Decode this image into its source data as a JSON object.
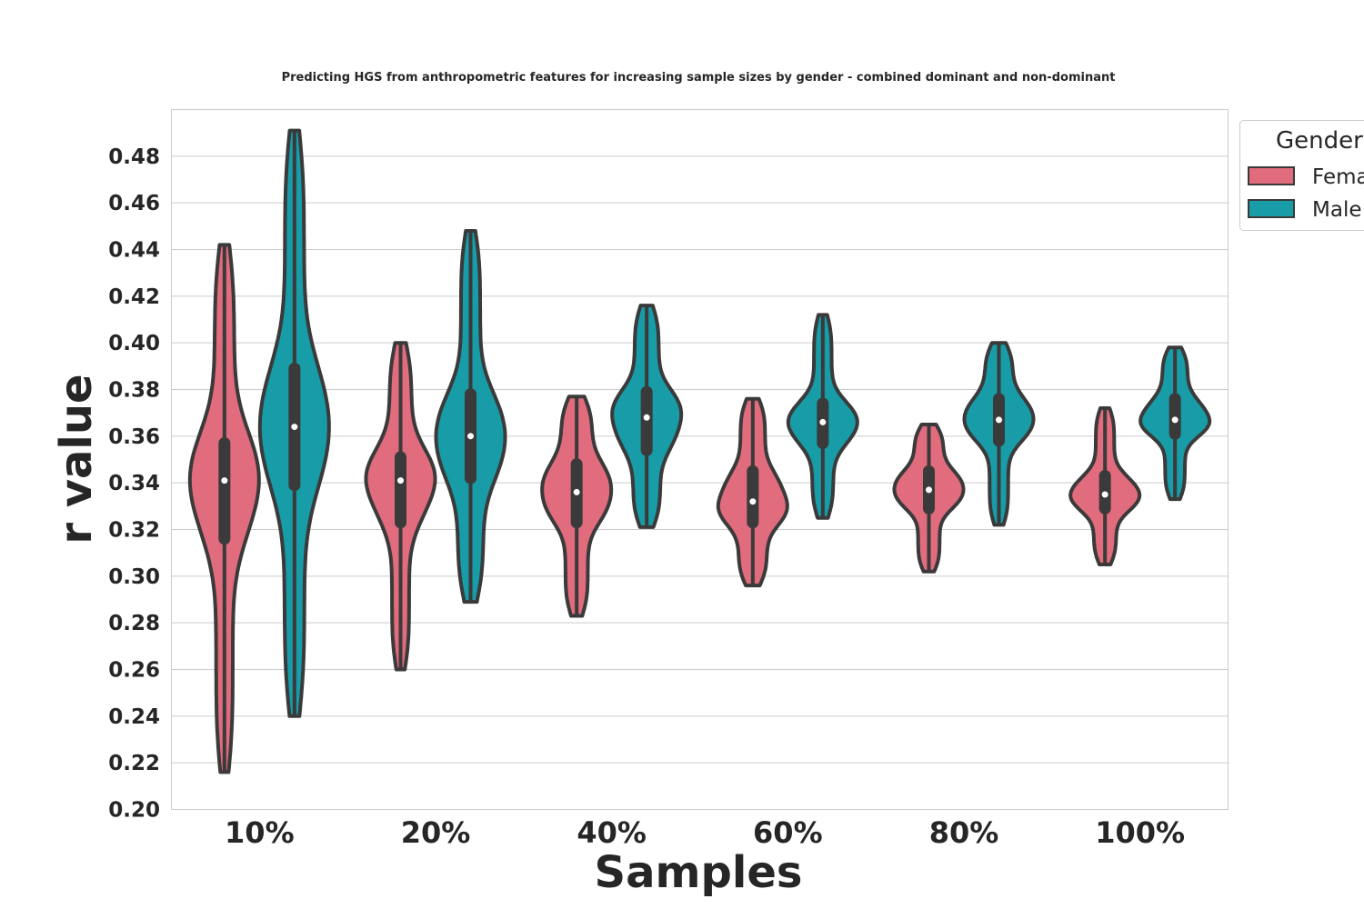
{
  "chart_data": {
    "type": "violin",
    "title": "Predicting HGS from anthropometric features for increasing sample sizes by gender - combined dominant and non-dominant",
    "xlabel": "Samples",
    "ylabel": "r value",
    "categories": [
      "10%",
      "20%",
      "40%",
      "60%",
      "80%",
      "100%"
    ],
    "ylim": [
      0.2,
      0.5
    ],
    "yticks": [
      "0.20",
      "0.22",
      "0.24",
      "0.26",
      "0.28",
      "0.30",
      "0.32",
      "0.34",
      "0.36",
      "0.38",
      "0.40",
      "0.42",
      "0.44",
      "0.46",
      "0.48"
    ],
    "grid": "horizontal",
    "legend": {
      "title": "Gender",
      "placement": "outside-top-right"
    },
    "series": [
      {
        "name": "Female",
        "color": "#e06c7d",
        "stats": [
          {
            "min": 0.216,
            "q1": 0.316,
            "median": 0.341,
            "q3": 0.357,
            "max": 0.442
          },
          {
            "min": 0.26,
            "q1": 0.323,
            "median": 0.341,
            "q3": 0.351,
            "max": 0.4
          },
          {
            "min": 0.283,
            "q1": 0.323,
            "median": 0.336,
            "q3": 0.348,
            "max": 0.377
          },
          {
            "min": 0.296,
            "q1": 0.323,
            "median": 0.332,
            "q3": 0.345,
            "max": 0.376
          },
          {
            "min": 0.302,
            "q1": 0.329,
            "median": 0.337,
            "q3": 0.345,
            "max": 0.365
          },
          {
            "min": 0.305,
            "q1": 0.329,
            "median": 0.335,
            "q3": 0.343,
            "max": 0.372
          }
        ]
      },
      {
        "name": "Male",
        "color": "#179ca8",
        "stats": [
          {
            "min": 0.24,
            "q1": 0.339,
            "median": 0.364,
            "q3": 0.389,
            "max": 0.491
          },
          {
            "min": 0.289,
            "q1": 0.342,
            "median": 0.36,
            "q3": 0.378,
            "max": 0.448
          },
          {
            "min": 0.321,
            "q1": 0.354,
            "median": 0.368,
            "q3": 0.379,
            "max": 0.416
          },
          {
            "min": 0.325,
            "q1": 0.357,
            "median": 0.366,
            "q3": 0.374,
            "max": 0.412
          },
          {
            "min": 0.322,
            "q1": 0.358,
            "median": 0.367,
            "q3": 0.376,
            "max": 0.4
          },
          {
            "min": 0.333,
            "q1": 0.361,
            "median": 0.367,
            "q3": 0.376,
            "max": 0.398
          }
        ]
      }
    ]
  }
}
